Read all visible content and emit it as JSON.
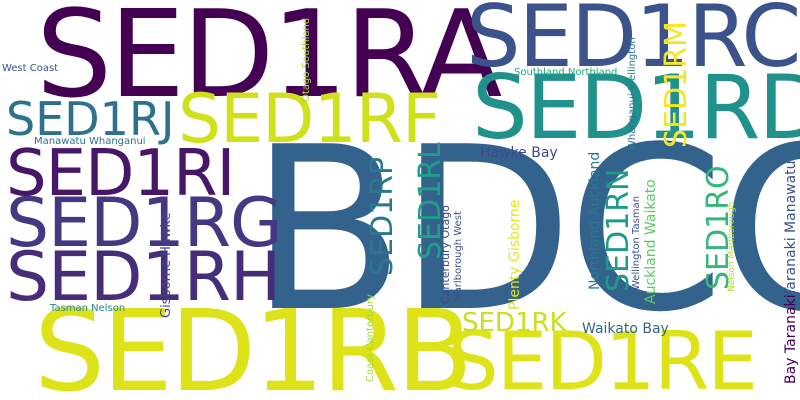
{
  "words": [
    {
      "id": "bdcq",
      "text": "BDCQ",
      "color": "#33638d"
    },
    {
      "id": "sed1ra",
      "text": "SED1RA",
      "color": "#440154"
    },
    {
      "id": "sed1rb",
      "text": "SED1RB",
      "color": "#dde318"
    },
    {
      "id": "sed1rc",
      "text": "SED1RC",
      "color": "#3b528b"
    },
    {
      "id": "sed1rd",
      "text": "SED1RD",
      "color": "#21918c"
    },
    {
      "id": "sed1re",
      "text": "SED1RE",
      "color": "#dde318"
    },
    {
      "id": "sed1rf",
      "text": "SED1RF",
      "color": "#d0e11c"
    },
    {
      "id": "sed1rg",
      "text": "SED1RG",
      "color": "#453781"
    },
    {
      "id": "sed1rh",
      "text": "SED1RH",
      "color": "#472c7a"
    },
    {
      "id": "sed1ri",
      "text": "SED1RI",
      "color": "#481668"
    },
    {
      "id": "sed1rj",
      "text": "SED1RJ",
      "color": "#2c728e"
    },
    {
      "id": "sed1rk",
      "text": "SED1RK",
      "color": "#c8e020"
    },
    {
      "id": "sed1rl",
      "text": "SED1RL",
      "color": "#1f9f88"
    },
    {
      "id": "sed1rm",
      "text": "SED1RM",
      "color": "#f6e620"
    },
    {
      "id": "sed1rn",
      "text": "SED1RN",
      "color": "#1f9a8a"
    },
    {
      "id": "sed1ro",
      "text": "SED1RO",
      "color": "#35b779"
    },
    {
      "id": "sed1rp",
      "text": "SED1RP",
      "color": "#2a788e"
    },
    {
      "id": "taranaki-manawatu",
      "text": "Taranaki Manawatu",
      "color": "#3b528b"
    },
    {
      "id": "bay-taranaki",
      "text": "Bay Taranaki",
      "color": "#440154"
    },
    {
      "id": "hawke-bay",
      "text": "Hawke Bay",
      "color": "#3e4a89"
    },
    {
      "id": "northland-auckland",
      "text": "Northland Auckland",
      "color": "#31688e"
    },
    {
      "id": "waikato-bay",
      "text": "Waikato Bay",
      "color": "#2a788e"
    },
    {
      "id": "auckland-waikato",
      "text": "Auckland Waikato",
      "color": "#5ec962"
    },
    {
      "id": "plenty-gisborne",
      "text": "Plenty Gisborne",
      "color": "#e5e419"
    },
    {
      "id": "gisborne-hawke",
      "text": "Gisborne Hawke",
      "color": "#414487"
    },
    {
      "id": "canterbury-otago",
      "text": "Canterbury Otago",
      "color": "#3e4989"
    },
    {
      "id": "marlborough-west",
      "text": "Marlborough West",
      "color": "#3b528b"
    },
    {
      "id": "wellington-tasman",
      "text": "Wellington Tasman",
      "color": "#3b528b"
    },
    {
      "id": "nelson-marlborough",
      "text": "Nelson Marlborough",
      "color": "#b5de2b"
    },
    {
      "id": "whanganui-wellington",
      "text": "Whanganui Wellington",
      "color": "#2a788e"
    },
    {
      "id": "southland-northland",
      "text": "Southland Northland",
      "color": "#22a884"
    },
    {
      "id": "otago-southland",
      "text": "Otago Southland",
      "color": "#a0da39"
    },
    {
      "id": "west-coast",
      "text": "West Coast",
      "color": "#39568c"
    },
    {
      "id": "manawatu-whanganui",
      "text": "Manawatu Whanganui",
      "color": "#2c728e"
    },
    {
      "id": "tasman-nelson",
      "text": "Tasman Nelson",
      "color": "#25858e"
    },
    {
      "id": "coast-canterbury",
      "text": "Coast Canterbury",
      "color": "#a2da37"
    }
  ]
}
